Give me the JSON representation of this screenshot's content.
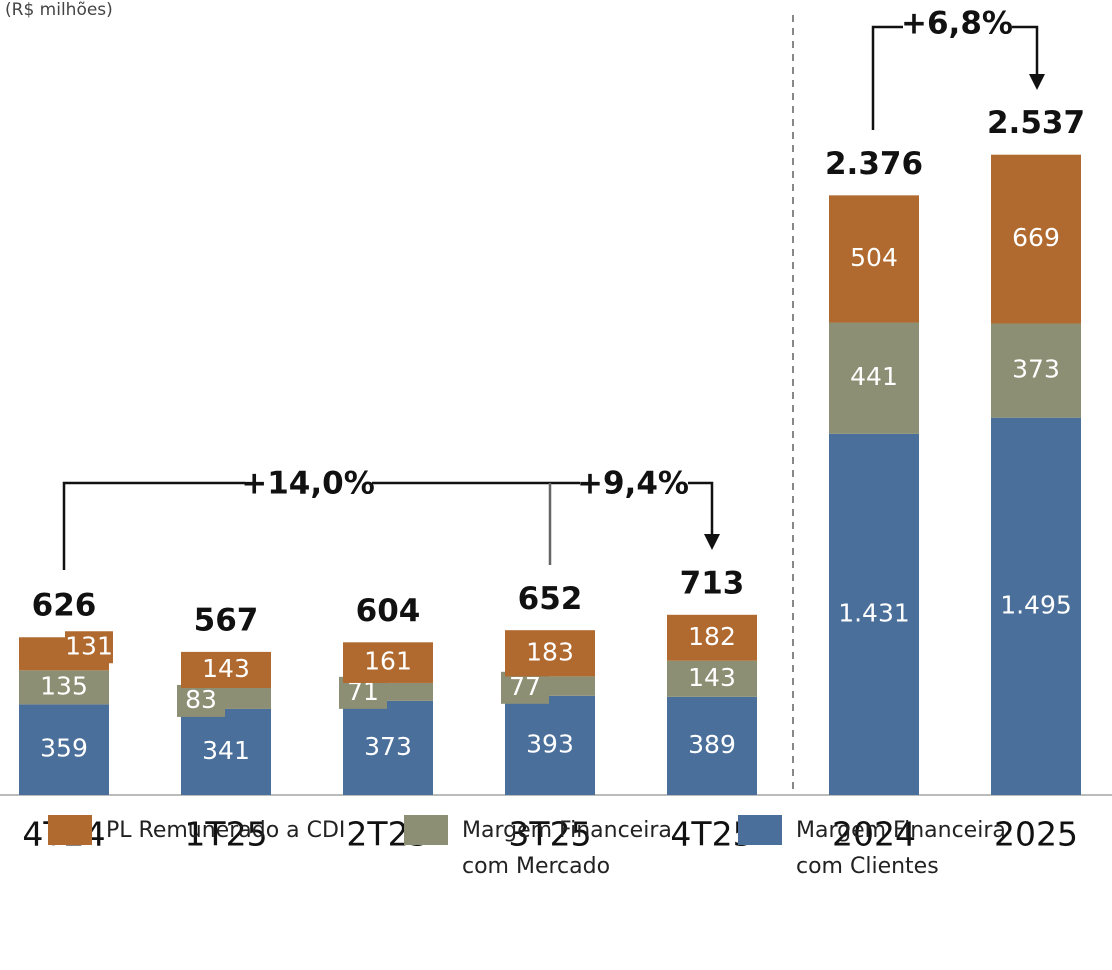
{
  "chart_data": {
    "type": "bar",
    "stacked": true,
    "subtitle": "(R$ milhões)",
    "categories": [
      "4T24",
      "1T25",
      "2T25",
      "3T25",
      "4T25",
      "2024",
      "2025"
    ],
    "series": [
      {
        "name": "Margem Financeira com Clientes",
        "color": "#4a6f9a",
        "values": [
          359,
          341,
          373,
          393,
          389,
          1431,
          1495
        ],
        "value_labels": [
          "359",
          "341",
          "373",
          "393",
          "389",
          "1.431",
          "1.495"
        ]
      },
      {
        "name": "Margem Financeira com Mercado",
        "color": "#8c8f73",
        "values": [
          135,
          83,
          71,
          77,
          143,
          441,
          373
        ]
      },
      {
        "name": "PL Remunerado a CDI",
        "color": "#b0692e",
        "values": [
          131,
          143,
          161,
          183,
          182,
          504,
          669
        ]
      }
    ],
    "totals": {
      "values": [
        626,
        567,
        604,
        652,
        713,
        2376,
        2537
      ],
      "value_labels": [
        "626",
        "567",
        "604",
        "652",
        "713",
        "2.376",
        "2.537"
      ]
    },
    "annotations": [
      "+14,0%",
      "+9,4%",
      "+6,8%"
    ],
    "ylim": [
      0,
      3150
    ]
  }
}
